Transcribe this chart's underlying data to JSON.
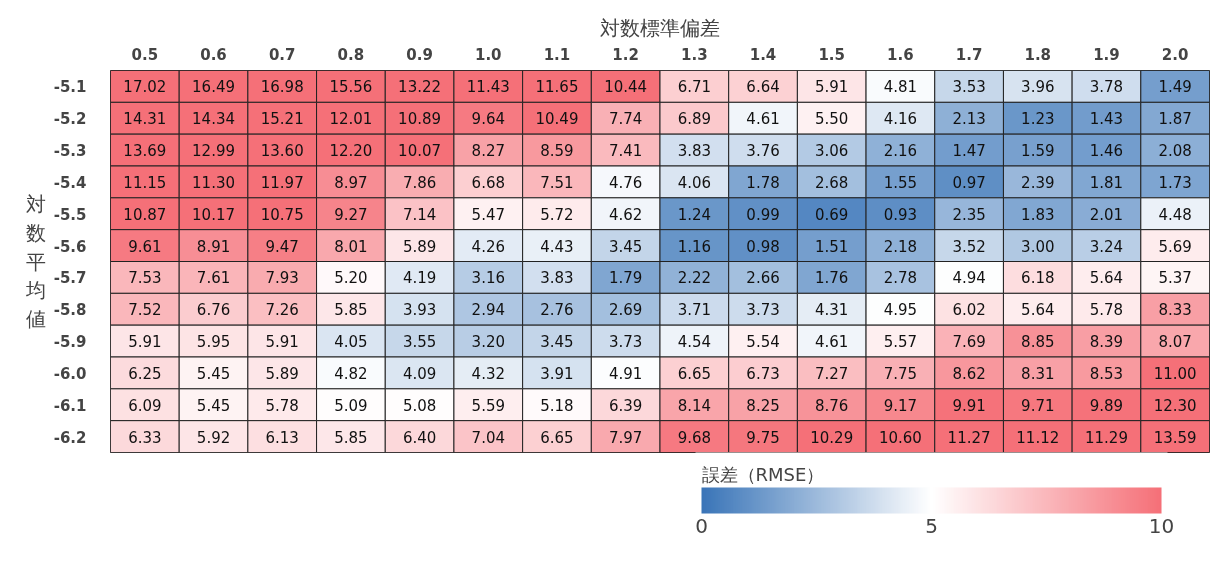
{
  "chart_data": {
    "type": "heatmap",
    "xlabel": "対数標準偏差",
    "ylabel": "対数平均値",
    "clabel": "誤差（RMSE）",
    "categories": [
      "0.5",
      "0.6",
      "0.7",
      "0.8",
      "0.9",
      "1.0",
      "1.1",
      "1.2",
      "1.3",
      "1.4",
      "1.5",
      "1.6",
      "1.7",
      "1.8",
      "1.9",
      "2.0"
    ],
    "y_categories": [
      "-5.1",
      "-5.2",
      "-5.3",
      "-5.4",
      "-5.5",
      "-5.6",
      "-5.7",
      "-5.8",
      "-5.9",
      "-6.0",
      "-6.1",
      "-6.2"
    ],
    "cells": [
      [
        17.02,
        16.49,
        16.98,
        15.56,
        13.22,
        11.43,
        11.65,
        10.44,
        6.71,
        6.64,
        5.91,
        4.81,
        3.53,
        3.96,
        3.78,
        1.49
      ],
      [
        14.31,
        14.34,
        15.21,
        12.01,
        10.89,
        9.64,
        10.49,
        7.74,
        6.89,
        4.61,
        5.5,
        4.16,
        2.13,
        1.23,
        1.43,
        1.87
      ],
      [
        13.69,
        12.99,
        13.6,
        12.2,
        10.07,
        8.27,
        8.59,
        7.41,
        3.83,
        3.76,
        3.06,
        2.16,
        1.47,
        1.59,
        1.46,
        2.08
      ],
      [
        11.15,
        11.3,
        11.97,
        8.97,
        7.86,
        6.68,
        7.51,
        4.76,
        4.06,
        1.78,
        2.68,
        1.55,
        0.97,
        2.39,
        1.81,
        1.73
      ],
      [
        10.87,
        10.17,
        10.75,
        9.27,
        7.14,
        5.47,
        5.72,
        4.62,
        1.24,
        0.99,
        0.69,
        0.93,
        2.35,
        1.83,
        2.01,
        4.48
      ],
      [
        9.61,
        8.91,
        9.47,
        8.01,
        5.89,
        4.26,
        4.43,
        3.45,
        1.16,
        0.98,
        1.51,
        2.18,
        3.52,
        3.0,
        3.24,
        5.69
      ],
      [
        7.53,
        7.61,
        7.93,
        5.2,
        4.19,
        3.16,
        3.83,
        1.79,
        2.22,
        2.66,
        1.76,
        2.78,
        4.94,
        6.18,
        5.64,
        5.37
      ],
      [
        7.52,
        6.76,
        7.26,
        5.85,
        3.93,
        2.94,
        2.76,
        2.69,
        3.71,
        3.73,
        4.31,
        4.95,
        6.02,
        5.64,
        5.78,
        8.33
      ],
      [
        5.91,
        5.95,
        5.91,
        4.05,
        3.55,
        3.2,
        3.45,
        3.73,
        4.54,
        5.54,
        4.61,
        5.57,
        7.69,
        8.85,
        8.39,
        8.07
      ],
      [
        6.25,
        5.45,
        5.89,
        4.82,
        4.09,
        4.32,
        3.91,
        4.91,
        6.65,
        6.73,
        7.27,
        7.75,
        8.62,
        8.31,
        8.53,
        11.0
      ],
      [
        6.09,
        5.45,
        5.78,
        5.09,
        5.08,
        5.59,
        5.18,
        6.39,
        8.14,
        8.25,
        8.76,
        9.17,
        9.91,
        9.71,
        9.89,
        12.3
      ],
      [
        6.33,
        5.92,
        6.13,
        5.85,
        6.4,
        7.04,
        6.65,
        7.97,
        9.68,
        9.75,
        10.29,
        10.6,
        11.27,
        11.12,
        11.29,
        13.59
      ]
    ],
    "cell_labels": [
      [
        "17.02",
        "16.49",
        "16.98",
        "15.56",
        "13.22",
        "11.43",
        "11.65",
        "10.44",
        "6.71",
        "6.64",
        "5.91",
        "4.81",
        "3.53",
        "3.96",
        "3.78",
        "1.49"
      ],
      [
        "14.31",
        "14.34",
        "15.21",
        "12.01",
        "10.89",
        "9.64",
        "10.49",
        "7.74",
        "6.89",
        "4.61",
        "5.50",
        "4.16",
        "2.13",
        "1.23",
        "1.43",
        "1.87"
      ],
      [
        "13.69",
        "12.99",
        "13.60",
        "12.20",
        "10.07",
        "8.27",
        "8.59",
        "7.41",
        "3.83",
        "3.76",
        "3.06",
        "2.16",
        "1.47",
        "1.59",
        "1.46",
        "2.08"
      ],
      [
        "11.15",
        "11.30",
        "11.97",
        "8.97",
        "7.86",
        "6.68",
        "7.51",
        "4.76",
        "4.06",
        "1.78",
        "2.68",
        "1.55",
        "0.97",
        "2.39",
        "1.81",
        "1.73"
      ],
      [
        "10.87",
        "10.17",
        "10.75",
        "9.27",
        "7.14",
        "5.47",
        "5.72",
        "4.62",
        "1.24",
        "0.99",
        "0.69",
        "0.93",
        "2.35",
        "1.83",
        "2.01",
        "4.48"
      ],
      [
        "9.61",
        "8.91",
        "9.47",
        "8.01",
        "5.89",
        "4.26",
        "4.43",
        "3.45",
        "1.16",
        "0.98",
        "1.51",
        "2.18",
        "3.52",
        "3.00",
        "3.24",
        "5.69"
      ],
      [
        "7.53",
        "7.61",
        "7.93",
        "5.20",
        "4.19",
        "3.16",
        "3.83",
        "1.79",
        "2.22",
        "2.66",
        "1.76",
        "2.78",
        "4.94",
        "6.18",
        "5.64",
        "5.37"
      ],
      [
        "7.52",
        "6.76",
        "7.26",
        "5.85",
        "3.93",
        "2.94",
        "2.76",
        "2.69",
        "3.71",
        "3.73",
        "4.31",
        "4.95",
        "6.02",
        "5.64",
        "5.78",
        "8.33"
      ],
      [
        "5.91",
        "5.95",
        "5.91",
        "4.05",
        "3.55",
        "3.20",
        "3.45",
        "3.73",
        "4.54",
        "5.54",
        "4.61",
        "5.57",
        "7.69",
        "8.85",
        "8.39",
        "8.07"
      ],
      [
        "6.25",
        "5.45",
        "5.89",
        "4.82",
        "4.09",
        "4.32",
        "3.91",
        "4.91",
        "6.65",
        "6.73",
        "7.27",
        "7.75",
        "8.62",
        "8.31",
        "8.53",
        "11.00"
      ],
      [
        "6.09",
        "5.45",
        "5.78",
        "5.09",
        "5.08",
        "5.59",
        "5.18",
        "6.39",
        "8.14",
        "8.25",
        "8.76",
        "9.17",
        "9.91",
        "9.71",
        "9.89",
        "12.30"
      ],
      [
        "6.33",
        "5.92",
        "6.13",
        "5.85",
        "6.40",
        "7.04",
        "6.65",
        "7.97",
        "9.68",
        "9.75",
        "10.29",
        "10.60",
        "11.27",
        "11.12",
        "11.29",
        "13.59"
      ]
    ],
    "clim": [
      0,
      10
    ],
    "cticks": [
      0,
      5,
      10
    ],
    "data_labels": true
  }
}
